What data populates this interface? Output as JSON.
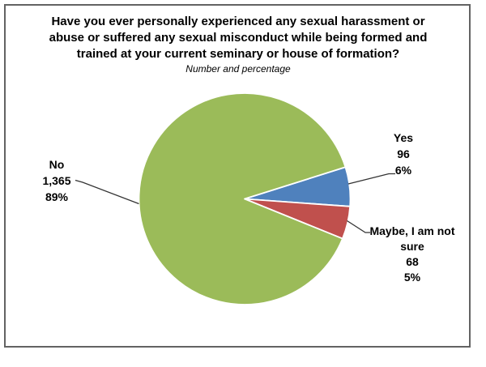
{
  "chart": {
    "title_lines": [
      "Have you ever personally experienced any sexual harassment or",
      "abuse or suffered any sexual misconduct while being formed and",
      "trained at your current seminary or house of formation?"
    ],
    "subtitle": "Number and percentage"
  },
  "chart_data": {
    "type": "pie",
    "title": "Have you ever personally experienced any sexual harassment or abuse or suffered any sexual misconduct while being formed and trained at your current seminary or house of formation?",
    "subtitle": "Number and percentage",
    "legend": "none",
    "labels_show": [
      "category",
      "value",
      "percentage"
    ],
    "rotation": "clockwise",
    "start_angle_deg": 17.5,
    "slices": [
      {
        "label": "Yes",
        "value": 96,
        "pct": 6,
        "color": "#4F81BD",
        "display": [
          "Yes",
          "96",
          "6%"
        ]
      },
      {
        "label": "Maybe, I am not sure",
        "value": 68,
        "pct": 5,
        "color": "#C0504D",
        "display": [
          "Maybe, I am not",
          "sure",
          "68",
          "5%"
        ]
      },
      {
        "label": "No",
        "value": 1365,
        "pct": 89,
        "color": "#9BBB59",
        "display": [
          "No",
          "1,365",
          "89%"
        ]
      }
    ]
  },
  "colors": {
    "frame_border": "#636363",
    "leader_line": "#333333",
    "slice_gap": "#ffffff",
    "text": "#000000",
    "background": "#ffffff"
  }
}
